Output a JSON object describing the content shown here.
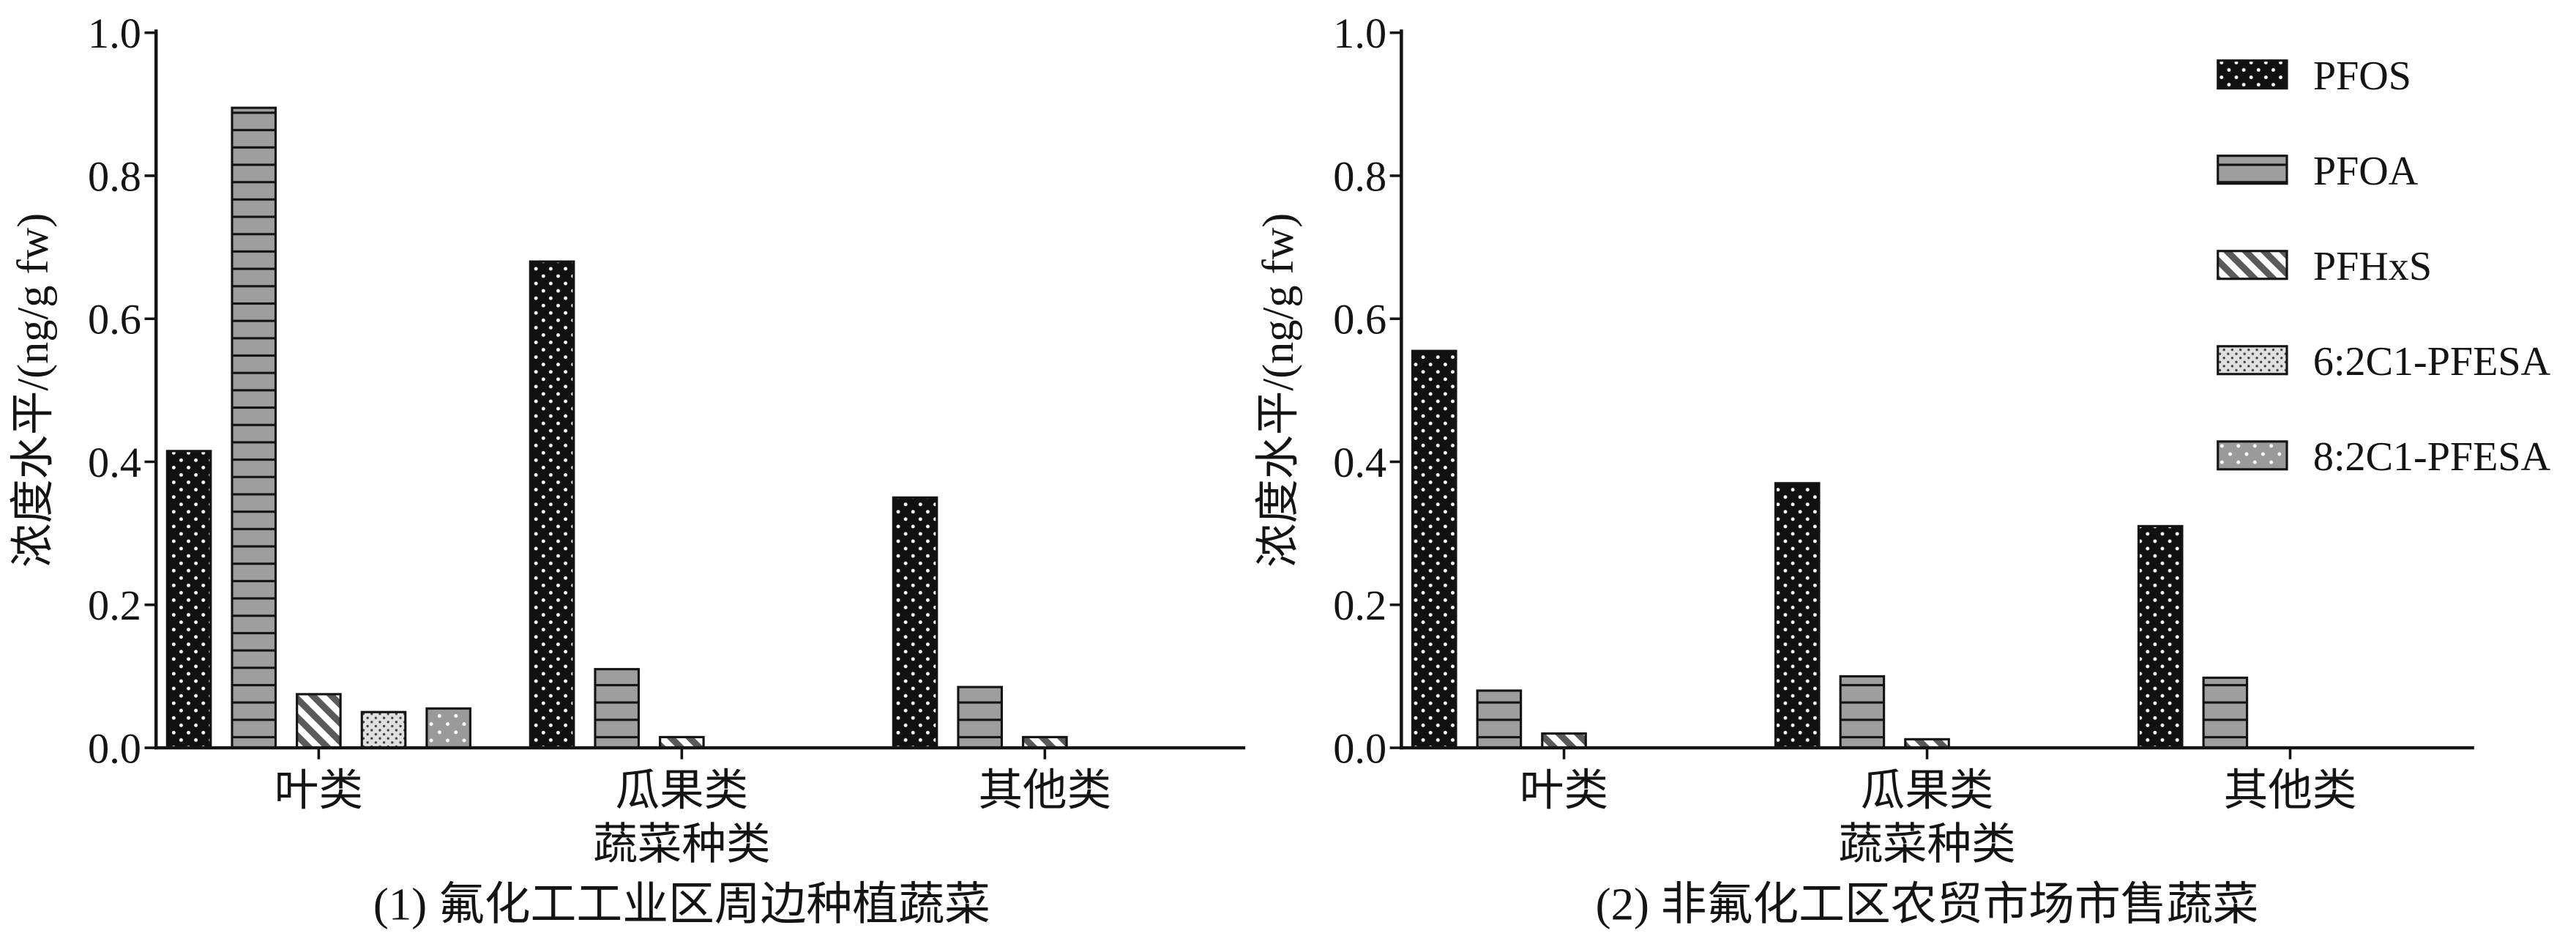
{
  "chart_data": [
    {
      "type": "bar",
      "title": "(1) 氟化工工业区周边种植蔬菜",
      "xlabel": "蔬菜种类",
      "ylabel": "浓度水平/(ng/g fw)",
      "ylim": [
        0,
        1.0
      ],
      "yticks": [
        "0.0",
        "0.2",
        "0.4",
        "0.6",
        "0.8",
        "1.0"
      ],
      "categories": [
        "叶类",
        "瓜果类",
        "其他类"
      ],
      "grid": false,
      "series": [
        {
          "color": "#111111",
          "values": [
            0.415,
            0.68,
            0.35
          ]
        },
        {
          "color": "#9e9e9e",
          "values": [
            0.895,
            0.11,
            0.085
          ]
        },
        {
          "color": "#ffffff",
          "values": [
            0.075,
            0.015,
            0.015
          ]
        },
        {
          "color": "#e0e0e0",
          "values": [
            0.05,
            0,
            0
          ]
        },
        {
          "color": "#9a9a9a",
          "values": [
            0.055,
            0,
            0
          ]
        }
      ]
    },
    {
      "type": "bar",
      "title": "(2) 非氟化工区农贸市场市售蔬菜",
      "xlabel": "蔬菜种类",
      "ylabel": "浓度水平/(ng/g fw)",
      "ylim": [
        0,
        1.0
      ],
      "yticks": [
        "0.0",
        "0.2",
        "0.4",
        "0.6",
        "0.8",
        "1.0"
      ],
      "categories": [
        "叶类",
        "瓜果类",
        "其他类"
      ],
      "grid": false,
      "legend": "top-right",
      "series": [
        {
          "name": "PFOS",
          "color": "#111111",
          "values": [
            0.555,
            0.37,
            0.31
          ]
        },
        {
          "name": "PFOA",
          "color": "#9e9e9e",
          "values": [
            0.08,
            0.1,
            0.098
          ]
        },
        {
          "name": "PFHxS",
          "color": "#ffffff",
          "values": [
            0.02,
            0.012,
            0
          ]
        },
        {
          "name": "6:2C1-PFESA",
          "color": "#e0e0e0",
          "values": [
            0,
            0,
            0
          ]
        },
        {
          "name": "8:2C1-PFESA",
          "color": "#9a9a9a",
          "values": [
            0,
            0,
            0
          ]
        }
      ]
    }
  ]
}
